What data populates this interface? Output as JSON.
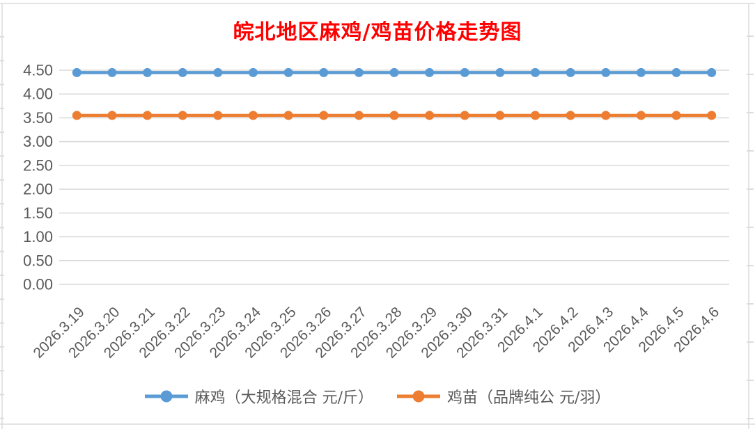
{
  "chart_data": {
    "type": "line",
    "title": "皖北地区麻鸡/鸡苗价格走势图",
    "categories": [
      "2026.3.19",
      "2026.3.20",
      "2026.3.21",
      "2026.3.22",
      "2026.3.23",
      "2026.3.24",
      "2026.3.25",
      "2026.3.26",
      "2026.3.27",
      "2026.3.28",
      "2026.3.29",
      "2026.3.30",
      "2026.3.31",
      "2026.4.1",
      "2026.4.2",
      "2026.4.3",
      "2026.4.4",
      "2026.4.5",
      "2026.4.6"
    ],
    "series": [
      {
        "name": "麻鸡（大规格混合 元/斤）",
        "color": "#5B9BD5",
        "values": [
          4.45,
          4.45,
          4.45,
          4.45,
          4.45,
          4.45,
          4.45,
          4.45,
          4.45,
          4.45,
          4.45,
          4.45,
          4.45,
          4.45,
          4.45,
          4.45,
          4.45,
          4.45,
          4.45
        ]
      },
      {
        "name": "鸡苗（品牌纯公 元/羽）",
        "color": "#ED7D31",
        "values": [
          3.55,
          3.55,
          3.55,
          3.55,
          3.55,
          3.55,
          3.55,
          3.55,
          3.55,
          3.55,
          3.55,
          3.55,
          3.55,
          3.55,
          3.55,
          3.55,
          3.55,
          3.55,
          3.55
        ]
      }
    ],
    "ylim": [
      0,
      4.5
    ],
    "ytick_step": 0.5,
    "ytick_labels": [
      "0.00",
      "0.50",
      "1.00",
      "1.50",
      "2.00",
      "2.50",
      "3.00",
      "3.50",
      "4.00",
      "4.50"
    ],
    "xlabel": "",
    "ylabel": "",
    "grid": true,
    "legend_position": "bottom",
    "marker": "circle"
  },
  "style": {
    "title_color": "#FF0000",
    "axis_text_color": "#595959",
    "gridline_color": "#D9D9D9",
    "frame_color": "#DCDCDC",
    "background": "#FFFFFF"
  }
}
